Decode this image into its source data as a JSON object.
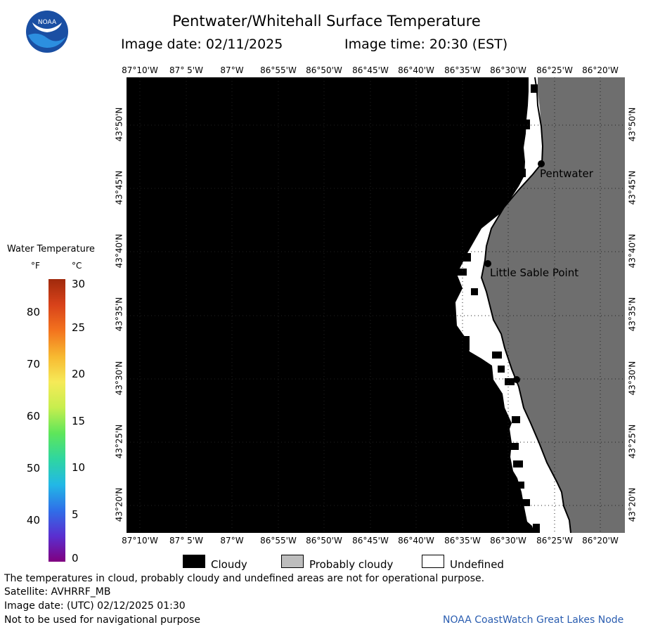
{
  "header": {
    "title": "Pentwater/Whitehall Surface Temperature",
    "image_date": "Image date: 02/11/2025",
    "image_time": "Image time: 20:30 (EST)"
  },
  "logo": {
    "text": "NOAA",
    "icon": "noaa-logo-icon"
  },
  "map": {
    "lon_labels": [
      "87°10'W",
      "87° 5'W",
      "87°W",
      "86°55'W",
      "86°50'W",
      "86°45'W",
      "86°40'W",
      "86°35'W",
      "86°30'W",
      "86°25'W",
      "86°20'W"
    ],
    "lat_labels": [
      "43°50'N",
      "43°45'N",
      "43°40'N",
      "43°35'N",
      "43°30'N",
      "43°25'N",
      "43°20'N"
    ],
    "places": [
      {
        "name": "Pentwater"
      },
      {
        "name": "Little Sable Point"
      }
    ],
    "colors": {
      "cloudy": "#000000",
      "probably_cloudy": "#bdbdbd",
      "undefined": "#ffffff",
      "land": "#6e6e6e",
      "shoreline": "#000000"
    }
  },
  "colorbar": {
    "title": "Water Temperature",
    "unit_f": "°F",
    "unit_c": "°C",
    "fahrenheit_ticks": [
      "80",
      "70",
      "60",
      "50",
      "40"
    ],
    "celsius_ticks": [
      "30",
      "25",
      "20",
      "15",
      "10",
      "5",
      "0"
    ]
  },
  "legend": {
    "cloudy": "Cloudy",
    "probably_cloudy": "Probably cloudy",
    "undefined": "Undefined"
  },
  "footer": {
    "disclaimer": "The temperatures in cloud, probably cloudy and undefined areas are not for operational purpose.",
    "satellite": "Satellite: AVHRRF_MB",
    "utc_date": "Image date: (UTC) 02/12/2025  01:30",
    "nav_warning": "Not to be used for navigational purpose",
    "credit": "NOAA CoastWatch Great Lakes Node"
  }
}
